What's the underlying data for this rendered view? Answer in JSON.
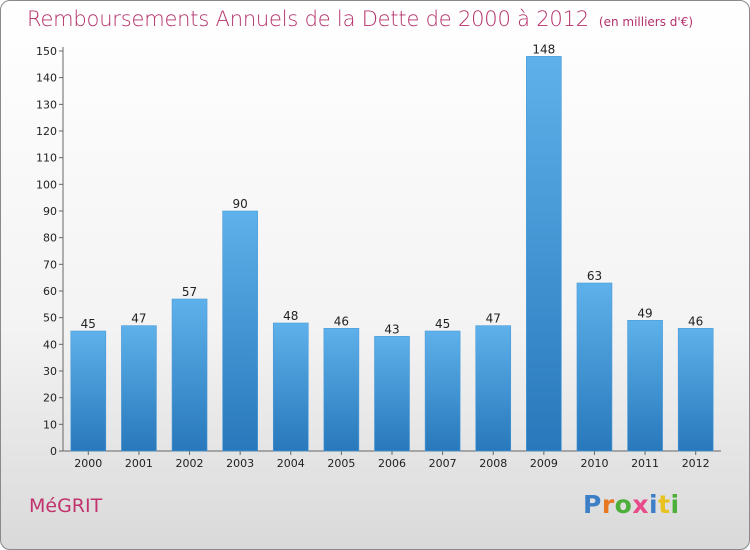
{
  "header": {
    "title": "Remboursements Annuels de la Dette de 2000 à 2012",
    "unit": "(en milliers d'€)"
  },
  "footer": {
    "town": "MéGRIT",
    "logo": "Proxiti"
  },
  "colors": {
    "title": "#b3306a",
    "bar_light": "#5aade6",
    "bar_dark": "#2a7bbf",
    "logo": [
      "#3d7fc7",
      "#e87722",
      "#4caf3a",
      "#e84b8a",
      "#3d7fc7",
      "#e8c21f",
      "#4caf3a"
    ]
  },
  "chart_data": {
    "type": "bar",
    "title": "Remboursements Annuels de la Dette de 2000 à 2012",
    "subtitle": "(en milliers d'€)",
    "categories": [
      "2000",
      "2001",
      "2002",
      "2003",
      "2004",
      "2005",
      "2006",
      "2007",
      "2008",
      "2009",
      "2010",
      "2011",
      "2012"
    ],
    "values": [
      45,
      47,
      57,
      90,
      48,
      46,
      43,
      45,
      47,
      148,
      63,
      49,
      46
    ],
    "ylim": [
      0,
      150
    ],
    "yticks": [
      0,
      10,
      20,
      30,
      40,
      50,
      60,
      70,
      80,
      90,
      100,
      110,
      120,
      130,
      140,
      150
    ],
    "grid": false,
    "xlabel": "",
    "ylabel": ""
  }
}
